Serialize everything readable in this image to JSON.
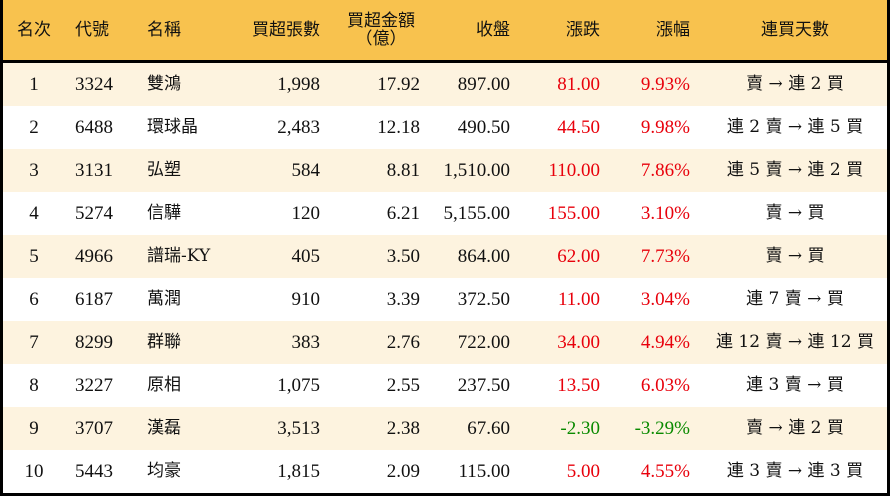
{
  "header": {
    "rank": "名次",
    "code": "代號",
    "name": "名稱",
    "net_buy_lots": "買超張數",
    "net_buy_amount_line1": "買超金額",
    "net_buy_amount_line2": "（億）",
    "close": "收盤",
    "change": "漲跌",
    "change_pct": "漲幅",
    "buy_streak": "連買天數"
  },
  "colors": {
    "header_bg": "#F8C24E",
    "odd_row_bg": "#FDF3DF",
    "even_row_bg": "#FFFFFF",
    "up": "#E8000B",
    "down": "#0A8A00",
    "border": "#000000"
  },
  "rows": [
    {
      "rank": "1",
      "code": "3324",
      "name": "雙鴻",
      "lots": "1,998",
      "amount": "17.92",
      "close": "897.00",
      "change": "81.00",
      "pct": "9.93%",
      "streak": "賣 → 連 2 買",
      "dir": "up"
    },
    {
      "rank": "2",
      "code": "6488",
      "name": "環球晶",
      "lots": "2,483",
      "amount": "12.18",
      "close": "490.50",
      "change": "44.50",
      "pct": "9.98%",
      "streak": "連 2 賣 → 連 5 買",
      "dir": "up"
    },
    {
      "rank": "3",
      "code": "3131",
      "name": "弘塑",
      "lots": "584",
      "amount": "8.81",
      "close": "1,510.00",
      "change": "110.00",
      "pct": "7.86%",
      "streak": "連 5 賣 → 連 2 買",
      "dir": "up"
    },
    {
      "rank": "4",
      "code": "5274",
      "name": "信驊",
      "lots": "120",
      "amount": "6.21",
      "close": "5,155.00",
      "change": "155.00",
      "pct": "3.10%",
      "streak": "賣 → 買",
      "dir": "up"
    },
    {
      "rank": "5",
      "code": "4966",
      "name": "譜瑞-KY",
      "lots": "405",
      "amount": "3.50",
      "close": "864.00",
      "change": "62.00",
      "pct": "7.73%",
      "streak": "賣 → 買",
      "dir": "up"
    },
    {
      "rank": "6",
      "code": "6187",
      "name": "萬潤",
      "lots": "910",
      "amount": "3.39",
      "close": "372.50",
      "change": "11.00",
      "pct": "3.04%",
      "streak": "連 7 賣 → 買",
      "dir": "up"
    },
    {
      "rank": "7",
      "code": "8299",
      "name": "群聯",
      "lots": "383",
      "amount": "2.76",
      "close": "722.00",
      "change": "34.00",
      "pct": "4.94%",
      "streak": "連 12 賣 → 連 12 買",
      "dir": "up"
    },
    {
      "rank": "8",
      "code": "3227",
      "name": "原相",
      "lots": "1,075",
      "amount": "2.55",
      "close": "237.50",
      "change": "13.50",
      "pct": "6.03%",
      "streak": "連 3 賣 → 買",
      "dir": "up"
    },
    {
      "rank": "9",
      "code": "3707",
      "name": "漢磊",
      "lots": "3,513",
      "amount": "2.38",
      "close": "67.60",
      "change": "-2.30",
      "pct": "-3.29%",
      "streak": "賣 → 連 2 買",
      "dir": "down"
    },
    {
      "rank": "10",
      "code": "5443",
      "name": "均豪",
      "lots": "1,815",
      "amount": "2.09",
      "close": "115.00",
      "change": "5.00",
      "pct": "4.55%",
      "streak": "連 3 賣 → 連 3 買",
      "dir": "up"
    }
  ]
}
